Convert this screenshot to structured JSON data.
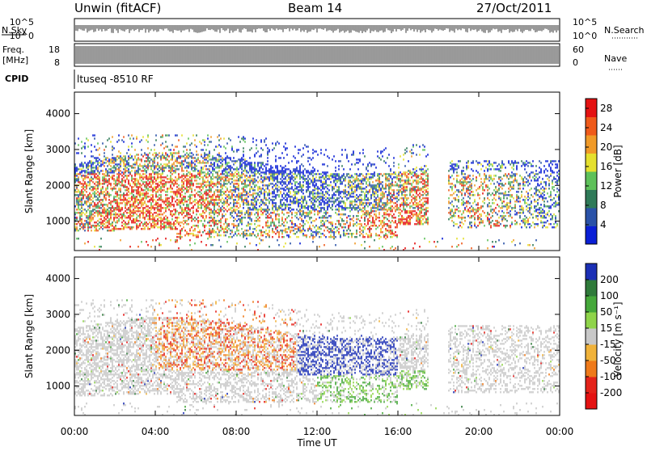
{
  "header": {
    "radar": "Unwin (fitACF)",
    "beam": "Beam 14",
    "date": "27/Oct/2011"
  },
  "nsky_panel": {
    "label": "N.Sky",
    "right_label": "N.Search",
    "ticks_left": [
      "10^5",
      "10^0"
    ],
    "ticks_right": [
      "10^5",
      "10^0"
    ]
  },
  "freq_panel": {
    "label_line1": "Freq.",
    "label_line2": "[MHz]",
    "right_label": "Nave",
    "ticks_left": [
      "18",
      "8"
    ],
    "ticks_right": [
      "60",
      "0"
    ]
  },
  "cpid_panel": {
    "label": "CPID",
    "program": "ltuseq -8510 RF"
  },
  "chart_data": [
    {
      "type": "heatmap",
      "title": "",
      "xlabel": "Time UT",
      "ylabel": "Slant Range [km]",
      "x_ticks": [
        "00:00",
        "04:00",
        "08:00",
        "12:00",
        "16:00",
        "20:00",
        "00:00"
      ],
      "y_ticks": [
        1000,
        2000,
        3000,
        4000
      ],
      "xlim_hours": [
        0,
        24
      ],
      "ylim_km": [
        180,
        4600
      ],
      "colorbar": {
        "label": "Power [dB]",
        "ticks": [
          4,
          8,
          12,
          16,
          20,
          24,
          28
        ],
        "range": [
          0,
          30
        ],
        "colors": [
          "#0a1fd6",
          "#2a52a8",
          "#2f7a58",
          "#5ec15a",
          "#e5e02e",
          "#f09a28",
          "#ef5a1a",
          "#e41212"
        ]
      }
    },
    {
      "type": "heatmap",
      "title": "",
      "xlabel": "Time UT",
      "ylabel": "Slant Range [km]",
      "x_ticks": [
        "00:00",
        "04:00",
        "08:00",
        "12:00",
        "16:00",
        "20:00",
        "00:00"
      ],
      "y_ticks": [
        1000,
        2000,
        3000,
        4000
      ],
      "xlim_hours": [
        0,
        24
      ],
      "ylim_km": [
        180,
        4600
      ],
      "colorbar": {
        "label": "Velocity [m s⁻¹]",
        "ticks": [
          200,
          100,
          50,
          15,
          -15,
          -50,
          -100,
          -200
        ],
        "colors": [
          "#1b2fb5",
          "#2f7a3a",
          "#45a83a",
          "#8fd44a",
          "#c8c8c8",
          "#f0b23a",
          "#ef7a1a",
          "#e4231a",
          "#e41212"
        ]
      }
    }
  ]
}
